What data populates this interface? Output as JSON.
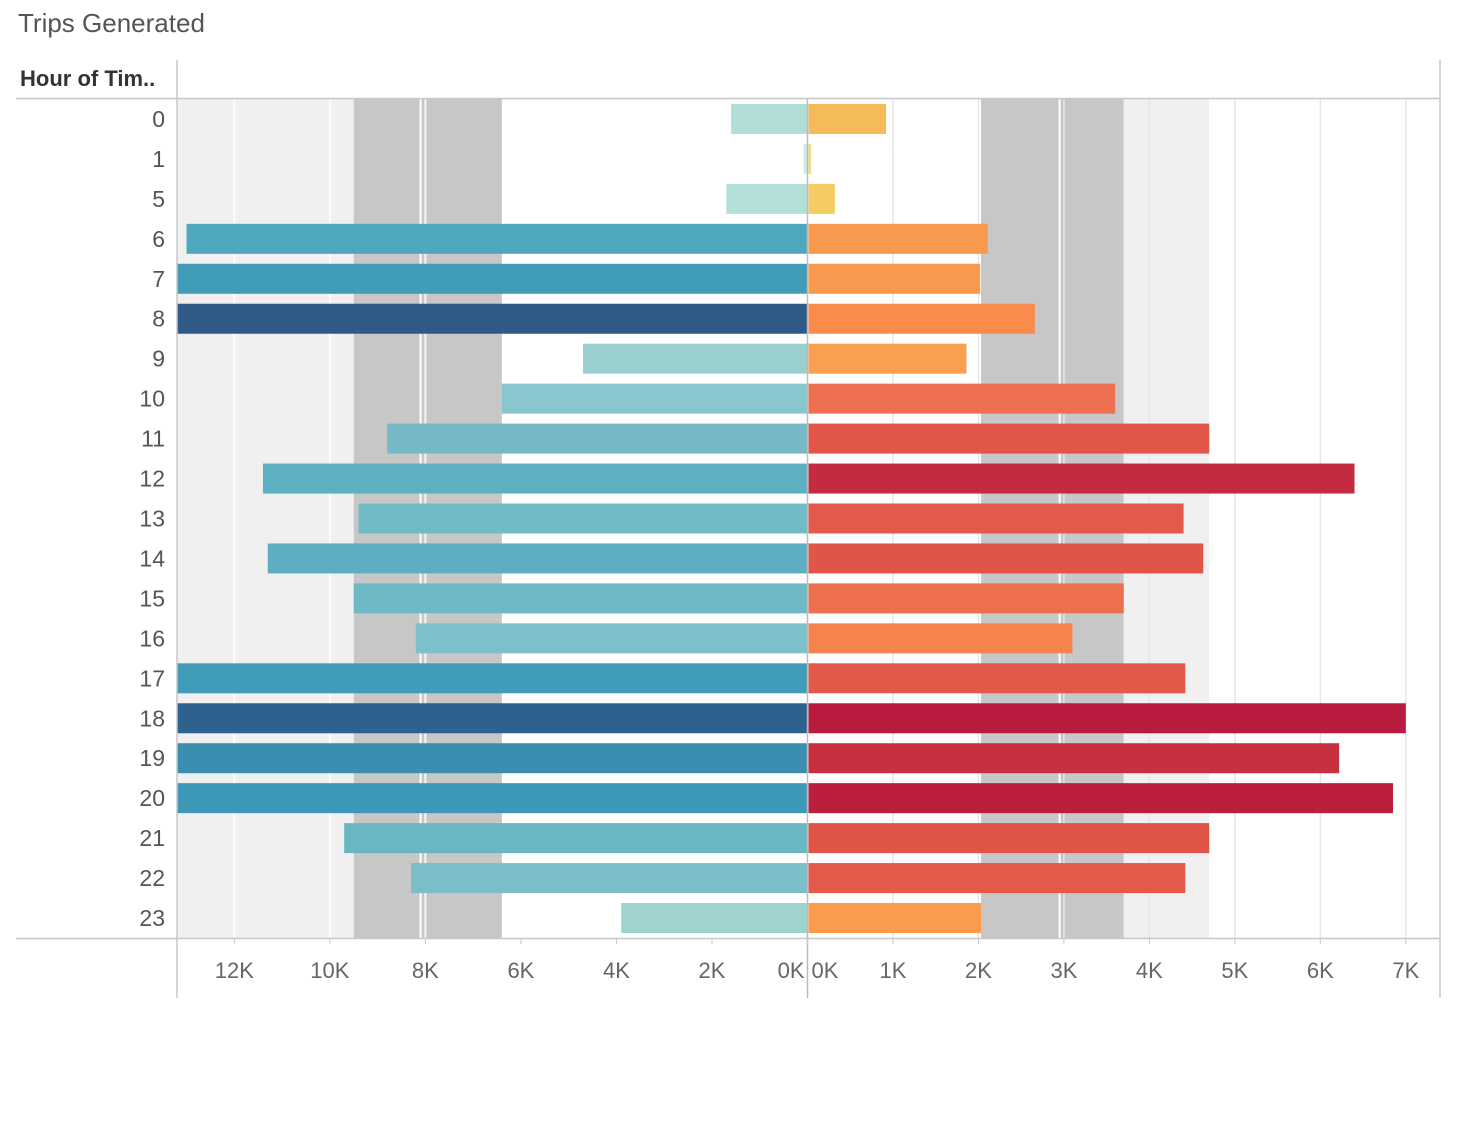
{
  "title": "Trips Generated",
  "row_header": "Hour of Tim..",
  "chart_data": {
    "type": "bar",
    "orientation": "horizontal-diverging",
    "title": "Trips Generated",
    "categories": [
      "0",
      "1",
      "5",
      "6",
      "7",
      "8",
      "9",
      "10",
      "11",
      "12",
      "13",
      "14",
      "15",
      "16",
      "17",
      "18",
      "19",
      "20",
      "21",
      "22",
      "23"
    ],
    "series": [
      {
        "values": [
          1600,
          80,
          1700,
          13000,
          13200,
          13200,
          4700,
          6400,
          8800,
          11400,
          9400,
          11300,
          9500,
          8200,
          13200,
          13200,
          13200,
          13200,
          9700,
          8300,
          3900
        ]
      },
      {
        "values": [
          920,
          40,
          320,
          2110,
          2020,
          2660,
          1860,
          3600,
          4700,
          6400,
          4400,
          4630,
          3700,
          3100,
          4420,
          7000,
          6220,
          6850,
          4700,
          4420,
          2030
        ]
      }
    ],
    "left_axis": {
      "ticks": [
        "12K",
        "10K",
        "8K",
        "6K",
        "4K",
        "2K",
        "0K"
      ],
      "tick_values": [
        12000,
        10000,
        8000,
        6000,
        4000,
        2000,
        0
      ],
      "range": [
        13200,
        0
      ],
      "reversed": true
    },
    "right_axis": {
      "ticks": [
        "0K",
        "1K",
        "2K",
        "3K",
        "4K",
        "5K",
        "6K",
        "7K"
      ],
      "tick_values": [
        0,
        1000,
        2000,
        3000,
        4000,
        5000,
        6000,
        7000
      ],
      "range": [
        0,
        7400
      ]
    },
    "left_reference_bands": {
      "outer": [
        6400,
        9500
      ],
      "inner_line": 8100
    },
    "right_reference_bands": {
      "outer": [
        2030,
        3700
      ],
      "inner_line": 2950,
      "light_band_end": 4700
    },
    "left_colors": [
      "#b2ded9",
      "#cfeae5",
      "#b3dfd9",
      "#4ea7bd",
      "#419cb7",
      "#2f5a87",
      "#99d0cf",
      "#88c7cd",
      "#74b9c5",
      "#5cb0c2",
      "#70bbc6",
      "#5daec3",
      "#6eb9c6",
      "#7cc0c9",
      "#409cb8",
      "#2e628e",
      "#3a8fb0",
      "#3d97b6",
      "#6ab7c4",
      "#79bec8",
      "#9ed3d0"
    ],
    "right_colors": [
      "#f5bb59",
      "#f6d97c",
      "#f5cc62",
      "#f9994d",
      "#f9994d",
      "#f98b4d",
      "#f9a150",
      "#ed7150",
      "#e15649",
      "#c42b40",
      "#e3594b",
      "#e05548",
      "#ec6f4e",
      "#f4834d",
      "#e25949",
      "#b81b3e",
      "#c9303f",
      "#bc1e3e",
      "#df5447",
      "#e35a4b",
      "#fa9b4d"
    ]
  }
}
